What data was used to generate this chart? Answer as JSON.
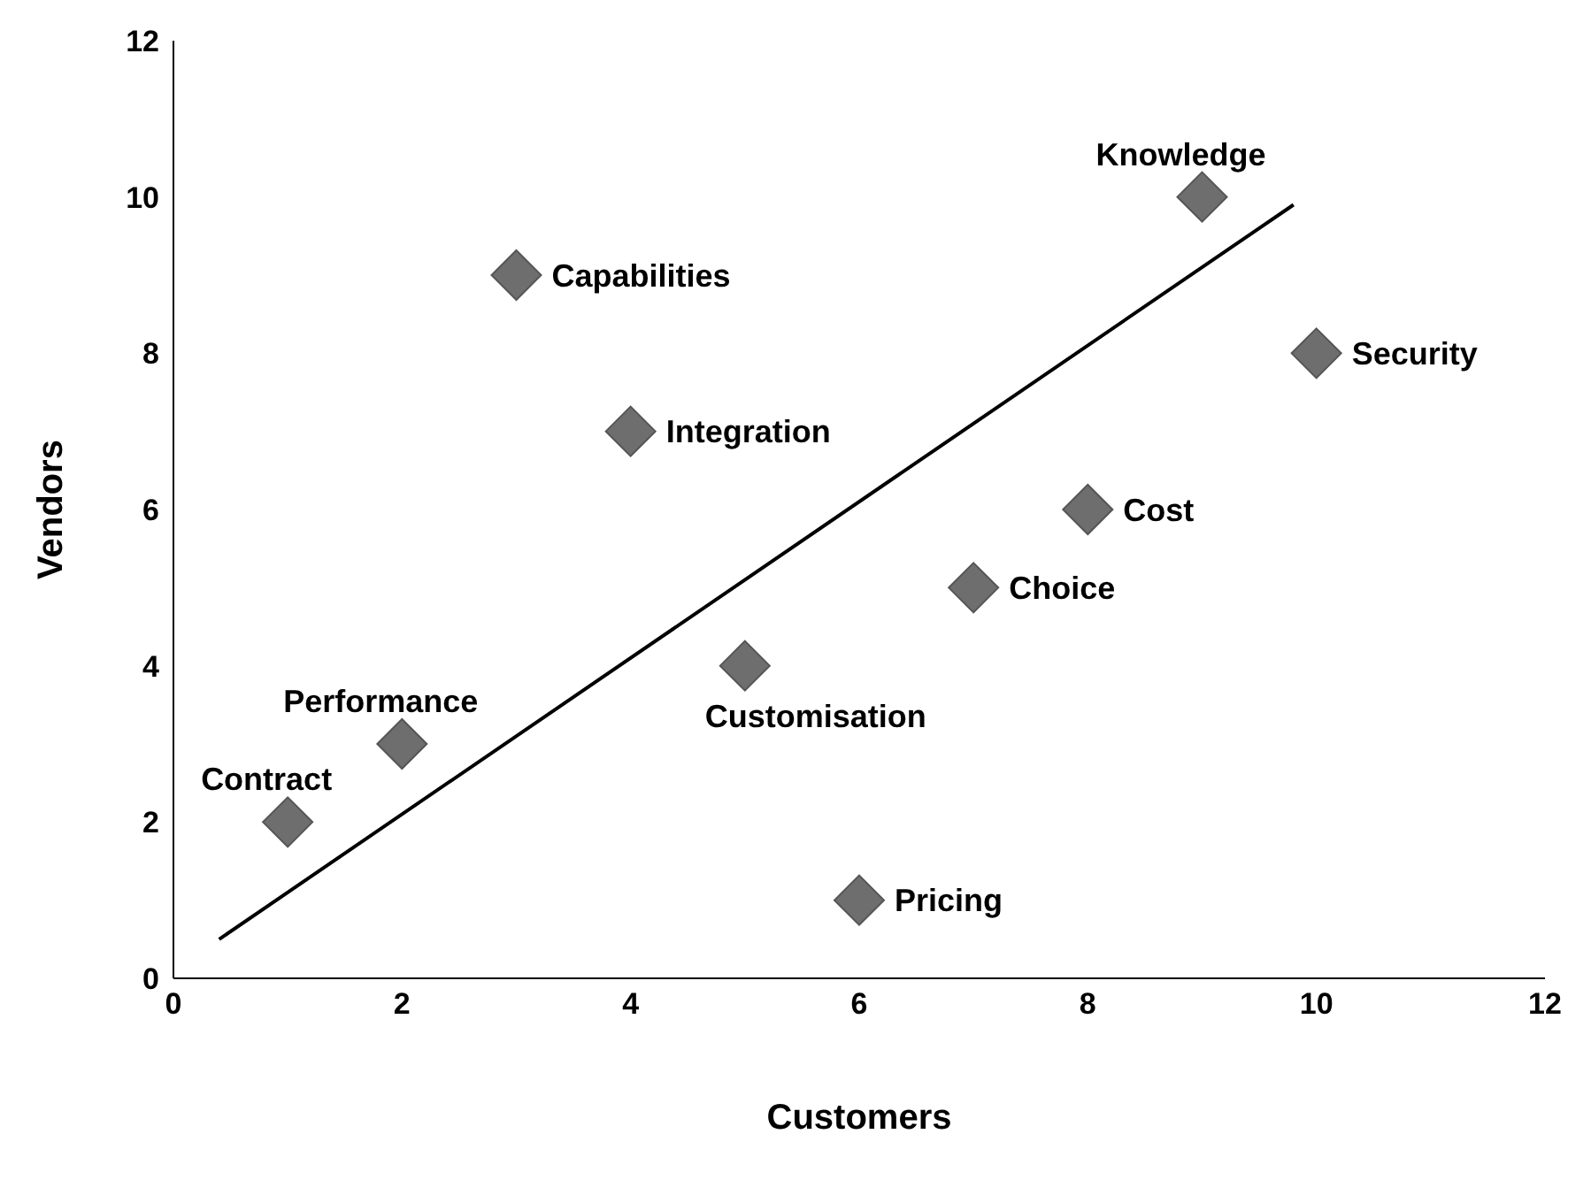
{
  "chart_data": {
    "type": "scatter",
    "xlabel": "Customers",
    "ylabel": "Vendors",
    "xlim": [
      0,
      12
    ],
    "xticks": [
      0,
      2,
      4,
      6,
      8,
      10,
      12
    ],
    "ylim": [
      0,
      12
    ],
    "yticks": [
      0,
      2,
      4,
      6,
      8,
      10,
      12
    ],
    "grid": false,
    "legend": false,
    "series": [
      {
        "marker": "diamond",
        "color": "#6e6e6e",
        "x": [
          1,
          2,
          3,
          4,
          5,
          6,
          7,
          8,
          9,
          10
        ],
        "values": [
          2,
          3,
          9,
          7,
          4,
          1,
          5,
          6,
          10,
          8
        ]
      },
      {
        "type": "line",
        "color": "#000000",
        "x": [
          0.4,
          9.8
        ],
        "values": [
          0.5,
          9.9
        ]
      }
    ],
    "annotations": [
      {
        "text": "Contract",
        "x": 1,
        "y": 2
      },
      {
        "text": "Performance",
        "x": 2,
        "y": 3
      },
      {
        "text": "Capabilities",
        "x": 3,
        "y": 9
      },
      {
        "text": "Integration",
        "x": 4,
        "y": 7
      },
      {
        "text": "Customisation",
        "x": 5,
        "y": 4
      },
      {
        "text": "Pricing",
        "x": 6,
        "y": 1
      },
      {
        "text": "Choice",
        "x": 7,
        "y": 5
      },
      {
        "text": "Cost",
        "x": 8,
        "y": 6
      },
      {
        "text": "Knowledge",
        "x": 9,
        "y": 10
      },
      {
        "text": "Security",
        "x": 10,
        "y": 8
      }
    ]
  }
}
